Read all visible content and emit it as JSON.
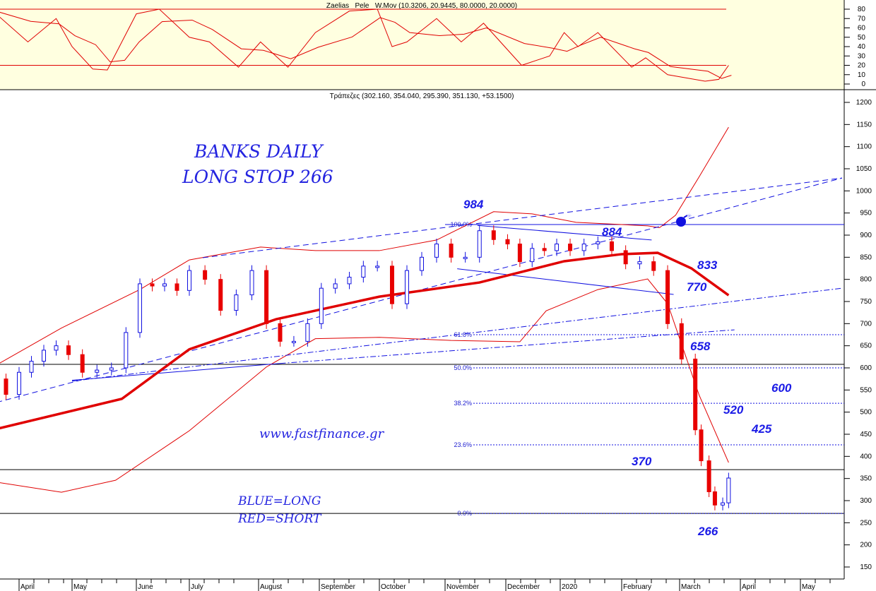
{
  "chart_data": [
    {
      "type": "line",
      "title": "Zaelias _Pele _W.Mov (10.3206, 20.9445, 80.0000, 20.0000)",
      "ylim": [
        -5,
        90
      ],
      "yticks": [
        0,
        10,
        20,
        30,
        40,
        50,
        60,
        70,
        80
      ],
      "levels": [
        80,
        20
      ],
      "colors": {
        "line": "#e00000",
        "background": "#ffffe0"
      },
      "series": {
        "dates": [
          "2019-03-18",
          "2019-04-06",
          "2019-04-22",
          "2019-05-01",
          "2019-05-11",
          "2019-05-18",
          "2019-05-25",
          "2019-06-01",
          "2019-06-14",
          "2019-07-01",
          "2019-07-10",
          "2019-07-23",
          "2019-08-02",
          "2019-08-16",
          "2019-08-30",
          "2019-09-16",
          "2019-09-30",
          "2019-10-07",
          "2019-10-14",
          "2019-10-28",
          "2019-11-09",
          "2019-11-20",
          "2019-12-10",
          "2019-12-26",
          "2020-01-03",
          "2020-01-10",
          "2020-01-20",
          "2020-02-06",
          "2020-02-13",
          "2020-02-24",
          "2020-03-14",
          "2020-03-21",
          "2020-03-26"
        ],
        "values": [
          78,
          45,
          70,
          40,
          16,
          15,
          45,
          75,
          80,
          50,
          45,
          18,
          45,
          18,
          55,
          78,
          80,
          40,
          45,
          70,
          45,
          65,
          20,
          30,
          55,
          40,
          55,
          18,
          28,
          10,
          3,
          5,
          20
        ]
      }
    },
    {
      "type": "candlestick",
      "title": "Τράπεζες (302.160, 354.040, 295.390, 351.130, +53.1500)",
      "ylim": [
        130,
        1220
      ],
      "yticks": [
        150,
        200,
        250,
        300,
        350,
        400,
        450,
        500,
        550,
        600,
        650,
        700,
        750,
        800,
        850,
        900,
        950,
        1000,
        1050,
        1100,
        1150,
        1200
      ],
      "xticks": [
        {
          "label": "April",
          "date": "2019-04-01"
        },
        {
          "label": "May",
          "date": "2019-05-01"
        },
        {
          "label": "June",
          "date": "2019-06-01"
        },
        {
          "label": "July",
          "date": "2019-07-01"
        },
        {
          "label": "August",
          "date": "2019-08-01"
        },
        {
          "label": "September",
          "date": "2019-09-01"
        },
        {
          "label": "October",
          "date": "2019-10-01"
        },
        {
          "label": "November",
          "date": "2019-11-01"
        },
        {
          "label": "December",
          "date": "2019-12-01"
        },
        {
          "label": "2020",
          "date": "2020-01-01"
        },
        {
          "label": "February",
          "date": "2020-02-01"
        },
        {
          "label": "March",
          "date": "2020-03-01"
        },
        {
          "label": "April",
          "date": "2020-04-01"
        },
        {
          "label": "May",
          "date": "2020-05-01"
        }
      ],
      "colors": {
        "up": "#1010e0",
        "down": "#e80000",
        "ma": "#e00000",
        "band": "#e00000",
        "trend": "#1010e0"
      },
      "closes": [
        [
          "2019-03-18",
          575
        ],
        [
          "2019-03-25",
          540
        ],
        [
          "2019-04-01",
          590
        ],
        [
          "2019-04-08",
          615
        ],
        [
          "2019-04-15",
          640
        ],
        [
          "2019-04-22",
          650
        ],
        [
          "2019-04-29",
          630
        ],
        [
          "2019-05-06",
          590
        ],
        [
          "2019-05-13",
          595
        ],
        [
          "2019-05-20",
          600
        ],
        [
          "2019-05-27",
          680
        ],
        [
          "2019-06-03",
          790
        ],
        [
          "2019-06-10",
          785
        ],
        [
          "2019-06-17",
          790
        ],
        [
          "2019-06-24",
          775
        ],
        [
          "2019-07-01",
          820
        ],
        [
          "2019-07-08",
          800
        ],
        [
          "2019-07-15",
          730
        ],
        [
          "2019-07-22",
          765
        ],
        [
          "2019-07-29",
          820
        ],
        [
          "2019-08-05",
          700
        ],
        [
          "2019-08-12",
          660
        ],
        [
          "2019-08-19",
          660
        ],
        [
          "2019-08-26",
          700
        ],
        [
          "2019-09-02",
          780
        ],
        [
          "2019-09-09",
          790
        ],
        [
          "2019-09-16",
          805
        ],
        [
          "2019-09-23",
          830
        ],
        [
          "2019-09-30",
          830
        ],
        [
          "2019-10-07",
          745
        ],
        [
          "2019-10-14",
          820
        ],
        [
          "2019-10-21",
          850
        ],
        [
          "2019-10-28",
          880
        ],
        [
          "2019-11-04",
          850
        ],
        [
          "2019-11-11",
          850
        ],
        [
          "2019-11-18",
          910
        ],
        [
          "2019-11-25",
          890
        ],
        [
          "2019-12-02",
          880
        ],
        [
          "2019-12-09",
          840
        ],
        [
          "2019-12-16",
          870
        ],
        [
          "2019-12-23",
          865
        ],
        [
          "2019-12-30",
          880
        ],
        [
          "2020-01-06",
          865
        ],
        [
          "2020-01-13",
          880
        ],
        [
          "2020-01-20",
          885
        ],
        [
          "2020-01-27",
          865
        ],
        [
          "2020-02-03",
          835
        ],
        [
          "2020-02-10",
          840
        ],
        [
          "2020-02-17",
          820
        ],
        [
          "2020-02-24",
          700
        ],
        [
          "2020-03-02",
          620
        ],
        [
          "2020-03-09",
          460
        ],
        [
          "2020-03-12",
          390
        ],
        [
          "2020-03-16",
          320
        ],
        [
          "2020-03-19",
          290
        ],
        [
          "2020-03-23",
          295
        ],
        [
          "2020-03-26",
          351
        ]
      ],
      "moving_average": [
        [
          "2019-03-18",
          460
        ],
        [
          "2019-05-25",
          530
        ],
        [
          "2019-07-01",
          642
        ],
        [
          "2019-08-10",
          710
        ],
        [
          "2019-10-01",
          761
        ],
        [
          "2019-11-18",
          793
        ],
        [
          "2020-01-03",
          841
        ],
        [
          "2020-02-01",
          857
        ],
        [
          "2020-02-19",
          860
        ],
        [
          "2020-03-07",
          825
        ],
        [
          "2020-03-26",
          764
        ]
      ],
      "upper_band": [
        [
          "2019-03-18",
          602
        ],
        [
          "2019-04-25",
          690
        ],
        [
          "2019-06-03",
          777
        ],
        [
          "2019-07-01",
          844
        ],
        [
          "2019-08-02",
          873
        ],
        [
          "2019-08-30",
          865
        ],
        [
          "2019-10-01",
          865
        ],
        [
          "2019-10-28",
          889
        ],
        [
          "2019-11-25",
          953
        ],
        [
          "2019-12-16",
          948
        ],
        [
          "2020-01-09",
          929
        ],
        [
          "2020-02-14",
          921
        ],
        [
          "2020-02-20",
          917
        ],
        [
          "2020-02-28",
          945
        ],
        [
          "2020-03-11",
          1032
        ],
        [
          "2020-03-26",
          1144
        ]
      ],
      "lower_band": [
        [
          "2019-03-18",
          343
        ],
        [
          "2019-04-25",
          319
        ],
        [
          "2019-05-22",
          346
        ],
        [
          "2019-07-01",
          458
        ],
        [
          "2019-08-05",
          602
        ],
        [
          "2019-08-30",
          666
        ],
        [
          "2019-10-01",
          669
        ],
        [
          "2019-11-04",
          662
        ],
        [
          "2019-12-09",
          659
        ],
        [
          "2019-12-24",
          729
        ],
        [
          "2020-01-20",
          777
        ],
        [
          "2020-02-14",
          801
        ],
        [
          "2020-02-24",
          745
        ],
        [
          "2020-03-11",
          538
        ],
        [
          "2020-03-26",
          386
        ]
      ],
      "trend_lines": [
        {
          "style": "dashed",
          "from": [
            "2019-03-20",
            522
          ],
          "to": [
            "2020-05-22",
            1029
          ]
        },
        {
          "style": "dashed",
          "from": [
            "2019-07-07",
            849
          ],
          "to": [
            "2020-05-22",
            1029
          ]
        },
        {
          "style": "dashdot",
          "from": [
            "2019-05-01",
            570
          ],
          "to": [
            "2020-05-22",
            780
          ]
        },
        {
          "style": "dashdot",
          "from": [
            "2019-08-12",
            610
          ],
          "to": [
            "2020-03-29",
            686
          ]
        },
        {
          "style": "solid",
          "from": [
            "2019-11-17",
            922
          ],
          "to": [
            "2020-02-16",
            889
          ]
        },
        {
          "style": "solid",
          "from": [
            "2019-11-07",
            824
          ],
          "to": [
            "2020-02-27",
            766
          ]
        },
        {
          "style": "solid",
          "from": [
            "2019-05-01",
            572
          ],
          "to": [
            "2019-08-12",
            610
          ]
        }
      ],
      "horizontal_lines": [
        608,
        370,
        271
      ],
      "resistance_line": 924,
      "fibonacci": [
        {
          "label": "100.0%",
          "value": 924
        },
        {
          "label": "61.8%",
          "value": 675
        },
        {
          "label": "50.0%",
          "value": 600
        },
        {
          "label": "38.2%",
          "value": 520
        },
        {
          "label": "23.6%",
          "value": 426
        },
        {
          "label": "0.0%",
          "value": 271
        }
      ],
      "annotations": [
        {
          "text": "984"
        },
        {
          "text": "884"
        },
        {
          "text": "833"
        },
        {
          "text": "770"
        },
        {
          "text": "658"
        },
        {
          "text": "600"
        },
        {
          "text": "520"
        },
        {
          "text": "425"
        },
        {
          "text": "370"
        },
        {
          "text": "266"
        }
      ],
      "notes": {
        "title1": "BANKS DAILY",
        "title2": "LONG  STOP 266",
        "site": "www.fastfinance.gr",
        "legend1": "BLUE=LONG",
        "legend2": "RED=SHORT"
      },
      "marker_icon": "bomb-icon"
    }
  ]
}
